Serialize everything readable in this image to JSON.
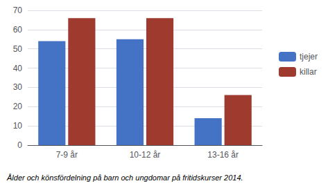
{
  "chart_data": {
    "type": "bar",
    "caption": "Ålder och könsfördelning på barn och ungdomar på fritidskurser 2014.",
    "categories": [
      "7-9 år",
      "10-12 år",
      "13-16 år"
    ],
    "series": [
      {
        "name": "tjejer",
        "color": "#4472C4",
        "values": [
          54,
          55,
          14
        ]
      },
      {
        "name": "killar",
        "color": "#9E3B2E",
        "values": [
          66,
          66,
          26
        ]
      }
    ],
    "ylim": [
      0,
      70
    ],
    "yticks": [
      0,
      10,
      20,
      30,
      40,
      50,
      60,
      70
    ],
    "grid": true,
    "legend": "right"
  }
}
